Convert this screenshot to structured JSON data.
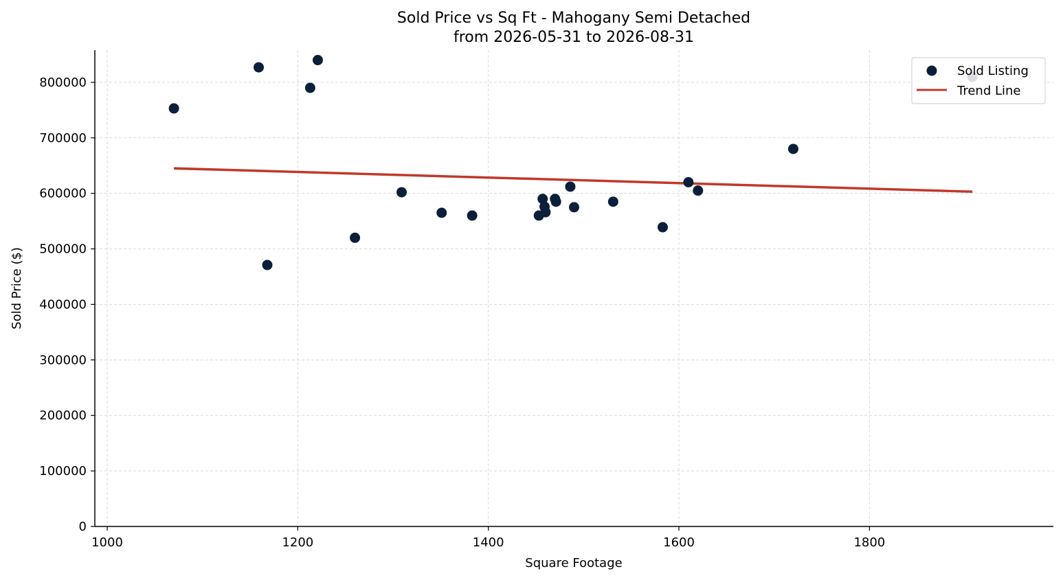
{
  "chart_data": {
    "type": "scatter",
    "title_line1": "Sold Price vs Sq Ft - Mahogany Semi Detached",
    "title_line2": "from 2026-05-31 to 2026-08-31",
    "xlabel": "Square Footage",
    "ylabel": "Sold Price ($)",
    "xlim": [
      987,
      1993
    ],
    "ylim": [
      0,
      858000
    ],
    "xticks": [
      1000,
      1200,
      1400,
      1600,
      1800
    ],
    "yticks": [
      0,
      100000,
      200000,
      300000,
      400000,
      500000,
      600000,
      700000,
      800000
    ],
    "grid": true,
    "legend_position": "top-right",
    "series": [
      {
        "name": "Sold Listing",
        "kind": "scatter",
        "color": "#0b1f3a",
        "points": [
          {
            "x": 1070,
            "y": 753000
          },
          {
            "x": 1159,
            "y": 827000
          },
          {
            "x": 1168,
            "y": 471000
          },
          {
            "x": 1213,
            "y": 790000
          },
          {
            "x": 1221,
            "y": 840000
          },
          {
            "x": 1260,
            "y": 520000
          },
          {
            "x": 1309,
            "y": 602000
          },
          {
            "x": 1351,
            "y": 565000
          },
          {
            "x": 1383,
            "y": 560000
          },
          {
            "x": 1453,
            "y": 560000
          },
          {
            "x": 1457,
            "y": 590000
          },
          {
            "x": 1459,
            "y": 576000
          },
          {
            "x": 1460,
            "y": 566000
          },
          {
            "x": 1470,
            "y": 590000
          },
          {
            "x": 1471,
            "y": 585000
          },
          {
            "x": 1486,
            "y": 612000
          },
          {
            "x": 1490,
            "y": 575000
          },
          {
            "x": 1531,
            "y": 585000
          },
          {
            "x": 1583,
            "y": 539000
          },
          {
            "x": 1610,
            "y": 620000
          },
          {
            "x": 1620,
            "y": 605000
          },
          {
            "x": 1720,
            "y": 680000
          },
          {
            "x": 1908,
            "y": 810000
          }
        ]
      },
      {
        "name": "Trend Line",
        "kind": "line",
        "color": "#c0392b",
        "points": [
          {
            "x": 1070,
            "y": 645000
          },
          {
            "x": 1908,
            "y": 603000
          }
        ]
      }
    ]
  }
}
